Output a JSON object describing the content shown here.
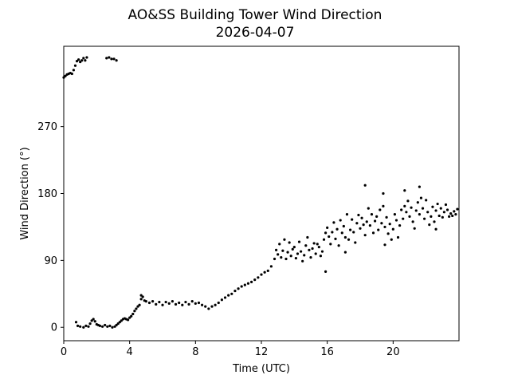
{
  "chart_data": {
    "type": "scatter",
    "title": "AO&SS Building Tower Wind Direction",
    "subtitle": "2026-04-07",
    "xlabel": "Time (UTC)",
    "ylabel": "Wind Direction (°)",
    "xlim": [
      0,
      24
    ],
    "ylim": [
      -18,
      378
    ],
    "xticks": [
      0,
      4,
      8,
      12,
      16,
      20
    ],
    "yticks": [
      0,
      90,
      180,
      270
    ],
    "grid": false,
    "marker_color": "#000000",
    "series": [
      {
        "points": [
          [
            0.0,
            336
          ],
          [
            0.1,
            338
          ],
          [
            0.2,
            340
          ],
          [
            0.3,
            341
          ],
          [
            0.4,
            342
          ],
          [
            0.5,
            341
          ],
          [
            0.6,
            346
          ],
          [
            0.7,
            352
          ],
          [
            0.8,
            358
          ],
          [
            0.9,
            360
          ],
          [
            1.0,
            357
          ],
          [
            1.1,
            359
          ],
          [
            1.2,
            362
          ],
          [
            1.3,
            359
          ],
          [
            1.4,
            363
          ],
          [
            2.6,
            362
          ],
          [
            2.75,
            363
          ],
          [
            2.9,
            361
          ],
          [
            3.05,
            361
          ],
          [
            3.2,
            359
          ],
          [
            0.75,
            7
          ],
          [
            0.85,
            2
          ],
          [
            1.0,
            1
          ],
          [
            1.2,
            0
          ],
          [
            1.35,
            2
          ],
          [
            1.5,
            1
          ],
          [
            1.6,
            5
          ],
          [
            1.7,
            9
          ],
          [
            1.8,
            11
          ],
          [
            1.9,
            8
          ],
          [
            2.0,
            4
          ],
          [
            2.1,
            3
          ],
          [
            2.2,
            2
          ],
          [
            2.35,
            1
          ],
          [
            2.5,
            3
          ],
          [
            2.65,
            1
          ],
          [
            2.8,
            2
          ],
          [
            2.95,
            0
          ],
          [
            3.1,
            1
          ],
          [
            3.2,
            3
          ],
          [
            3.3,
            5
          ],
          [
            3.4,
            7
          ],
          [
            3.5,
            9
          ],
          [
            3.6,
            11
          ],
          [
            3.7,
            12
          ],
          [
            3.8,
            11
          ],
          [
            3.9,
            10
          ],
          [
            4.0,
            13
          ],
          [
            4.1,
            15
          ],
          [
            4.2,
            18
          ],
          [
            4.3,
            22
          ],
          [
            4.4,
            25
          ],
          [
            4.5,
            28
          ],
          [
            4.6,
            30
          ],
          [
            4.7,
            38
          ],
          [
            4.8,
            41
          ],
          [
            4.9,
            36
          ],
          [
            5.0,
            35
          ],
          [
            5.2,
            33
          ],
          [
            5.4,
            35
          ],
          [
            5.6,
            31
          ],
          [
            5.8,
            34
          ],
          [
            6.0,
            30
          ],
          [
            6.2,
            34
          ],
          [
            6.4,
            32
          ],
          [
            6.6,
            35
          ],
          [
            6.8,
            31
          ],
          [
            7.0,
            33
          ],
          [
            7.2,
            30
          ],
          [
            7.4,
            34
          ],
          [
            7.6,
            31
          ],
          [
            7.8,
            35
          ],
          [
            8.0,
            32
          ],
          [
            8.2,
            33
          ],
          [
            8.4,
            30
          ],
          [
            8.6,
            28
          ],
          [
            8.8,
            25
          ],
          [
            9.0,
            28
          ],
          [
            9.2,
            30
          ],
          [
            9.4,
            33
          ],
          [
            9.6,
            37
          ],
          [
            9.8,
            40
          ],
          [
            10.0,
            43
          ],
          [
            10.2,
            45
          ],
          [
            10.4,
            49
          ],
          [
            10.6,
            52
          ],
          [
            10.8,
            55
          ],
          [
            11.0,
            57
          ],
          [
            11.2,
            59
          ],
          [
            11.4,
            61
          ],
          [
            11.6,
            64
          ],
          [
            11.8,
            67
          ],
          [
            12.0,
            71
          ],
          [
            12.2,
            74
          ],
          [
            12.4,
            76
          ],
          [
            12.6,
            82
          ],
          [
            12.8,
            92
          ],
          [
            12.9,
            104
          ],
          [
            13.0,
            98
          ],
          [
            13.1,
            112
          ],
          [
            13.2,
            94
          ],
          [
            13.3,
            103
          ],
          [
            13.4,
            118
          ],
          [
            13.5,
            92
          ],
          [
            13.6,
            101
          ],
          [
            13.7,
            114
          ],
          [
            13.8,
            96
          ],
          [
            13.9,
            105
          ],
          [
            14.0,
            108
          ],
          [
            14.1,
            93
          ],
          [
            14.2,
            99
          ],
          [
            14.3,
            115
          ],
          [
            14.4,
            102
          ],
          [
            14.5,
            89
          ],
          [
            14.6,
            97
          ],
          [
            14.7,
            110
          ],
          [
            14.8,
            121
          ],
          [
            14.9,
            104
          ],
          [
            15.0,
            94
          ],
          [
            15.1,
            106
          ],
          [
            15.2,
            113
          ],
          [
            15.3,
            99
          ],
          [
            15.4,
            112
          ],
          [
            15.5,
            108
          ],
          [
            15.6,
            96
          ],
          [
            15.7,
            102
          ],
          [
            15.8,
            118
          ],
          [
            15.9,
            127
          ],
          [
            16.0,
            134
          ],
          [
            16.1,
            122
          ],
          [
            16.2,
            112
          ],
          [
            16.3,
            128
          ],
          [
            16.4,
            141
          ],
          [
            16.5,
            119
          ],
          [
            16.6,
            132
          ],
          [
            16.7,
            110
          ],
          [
            16.8,
            144
          ],
          [
            16.9,
            127
          ],
          [
            17.0,
            136
          ],
          [
            17.1,
            121
          ],
          [
            17.2,
            152
          ],
          [
            17.3,
            118
          ],
          [
            17.4,
            131
          ],
          [
            17.5,
            145
          ],
          [
            17.6,
            128
          ],
          [
            17.7,
            114
          ],
          [
            17.8,
            140
          ],
          [
            17.9,
            151
          ],
          [
            18.0,
            133
          ],
          [
            18.1,
            147
          ],
          [
            18.2,
            138
          ],
          [
            18.3,
            124
          ],
          [
            18.4,
            142
          ],
          [
            18.5,
            160
          ],
          [
            18.6,
            137
          ],
          [
            18.7,
            152
          ],
          [
            18.8,
            127
          ],
          [
            18.9,
            143
          ],
          [
            19.0,
            149
          ],
          [
            19.1,
            131
          ],
          [
            19.2,
            158
          ],
          [
            19.3,
            140
          ],
          [
            19.4,
            163
          ],
          [
            19.5,
            135
          ],
          [
            19.6,
            148
          ],
          [
            19.7,
            126
          ],
          [
            19.8,
            139
          ],
          [
            19.9,
            118
          ],
          [
            20.0,
            132
          ],
          [
            20.1,
            152
          ],
          [
            20.2,
            144
          ],
          [
            20.3,
            121
          ],
          [
            20.4,
            137
          ],
          [
            20.5,
            158
          ],
          [
            20.6,
            146
          ],
          [
            20.7,
            163
          ],
          [
            20.8,
            155
          ],
          [
            20.9,
            170
          ],
          [
            21.0,
            149
          ],
          [
            21.1,
            161
          ],
          [
            21.2,
            142
          ],
          [
            21.3,
            133
          ],
          [
            21.4,
            157
          ],
          [
            21.5,
            168
          ],
          [
            21.6,
            152
          ],
          [
            21.7,
            174
          ],
          [
            21.8,
            160
          ],
          [
            21.9,
            146
          ],
          [
            22.0,
            171
          ],
          [
            22.1,
            155
          ],
          [
            22.2,
            138
          ],
          [
            22.3,
            149
          ],
          [
            22.4,
            162
          ],
          [
            22.5,
            142
          ],
          [
            22.6,
            157
          ],
          [
            22.7,
            166
          ],
          [
            22.8,
            150
          ],
          [
            22.9,
            160
          ],
          [
            23.0,
            148
          ],
          [
            23.1,
            155
          ],
          [
            23.2,
            165
          ],
          [
            23.3,
            158
          ],
          [
            23.4,
            149
          ],
          [
            23.5,
            153
          ],
          [
            23.6,
            150
          ],
          [
            23.7,
            156
          ],
          [
            23.8,
            152
          ],
          [
            23.9,
            159
          ],
          [
            4.7,
            43
          ],
          [
            18.3,
            191
          ],
          [
            21.6,
            189
          ],
          [
            19.4,
            180
          ],
          [
            20.7,
            184
          ],
          [
            15.9,
            75
          ],
          [
            17.1,
            101
          ],
          [
            19.5,
            111
          ],
          [
            22.6,
            132
          ]
        ]
      }
    ]
  }
}
